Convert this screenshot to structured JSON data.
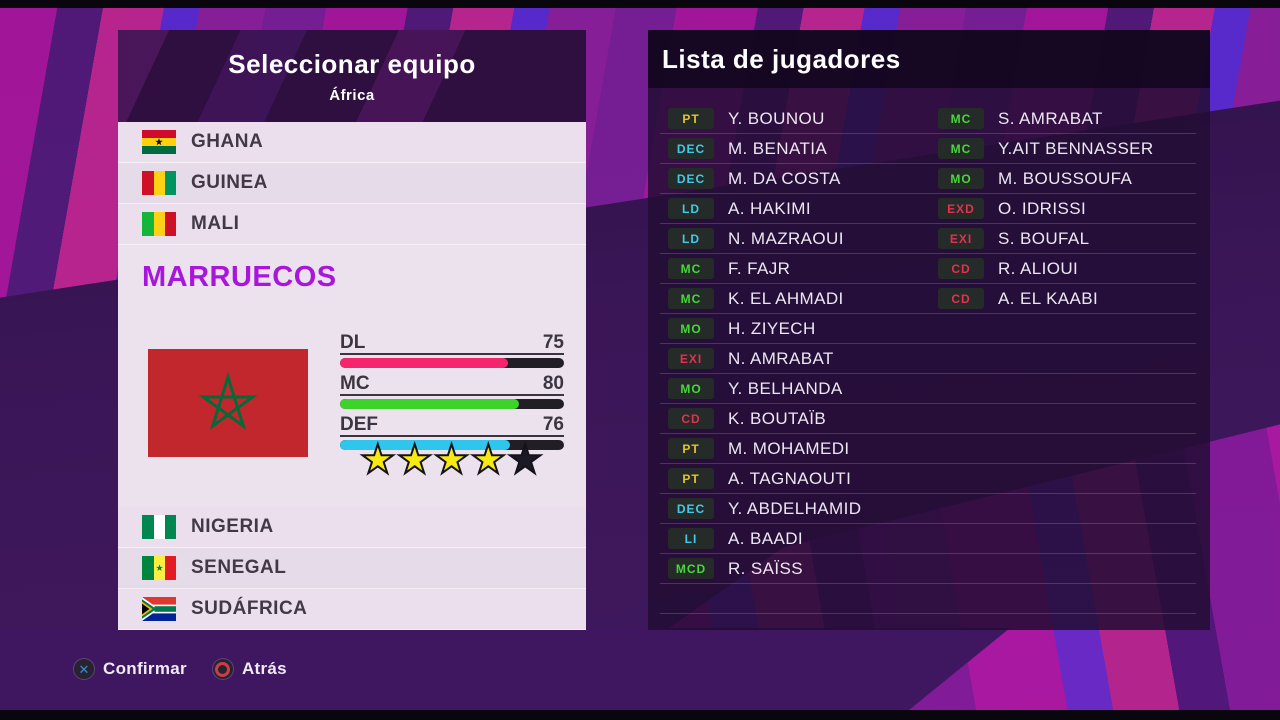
{
  "left_panel": {
    "title": "Seleccionar equipo",
    "subtitle": "África",
    "teams_above": [
      {
        "name": "GHANA",
        "flag": "gh"
      },
      {
        "name": "GUINEA",
        "flag": "gn"
      },
      {
        "name": "MALI",
        "flag": "ml"
      }
    ],
    "selected": {
      "name": "MARRUECOS",
      "flag": "ma",
      "stats": [
        {
          "label": "DL",
          "value": 75,
          "color": "#f5256d"
        },
        {
          "label": "MC",
          "value": 80,
          "color": "#3ed32b"
        },
        {
          "label": "DEF",
          "value": 76,
          "color": "#2ec6ec"
        }
      ],
      "stars_filled": 4,
      "stars_total": 5
    },
    "teams_below": [
      {
        "name": "NIGERIA",
        "flag": "ng"
      },
      {
        "name": "SENEGAL",
        "flag": "sn"
      },
      {
        "name": "SUDÁFRICA",
        "flag": "za"
      }
    ]
  },
  "player_list": {
    "title": "Lista de jugadores",
    "rows_per_column": 17,
    "columns": [
      [
        {
          "pos": "PT",
          "role": "gk",
          "name": "Y. BOUNOU"
        },
        {
          "pos": "DEC",
          "role": "df",
          "name": "M. BENATIA"
        },
        {
          "pos": "DEC",
          "role": "df",
          "name": "M. DA COSTA"
        },
        {
          "pos": "LD",
          "role": "df",
          "name": "A. HAKIMI"
        },
        {
          "pos": "LD",
          "role": "df",
          "name": "N. MAZRAOUI"
        },
        {
          "pos": "MC",
          "role": "mf",
          "name": "F. FAJR"
        },
        {
          "pos": "MC",
          "role": "mf",
          "name": "K. EL AHMADI"
        },
        {
          "pos": "MO",
          "role": "mf",
          "name": "H. ZIYECH"
        },
        {
          "pos": "EXI",
          "role": "fw",
          "name": "N. AMRABAT"
        },
        {
          "pos": "MO",
          "role": "mf",
          "name": "Y. BELHANDA"
        },
        {
          "pos": "CD",
          "role": "fw",
          "name": "K. BOUTAÏB"
        },
        {
          "pos": "PT",
          "role": "gk",
          "name": "M. MOHAMEDI"
        },
        {
          "pos": "PT",
          "role": "gk",
          "name": "A. TAGNAOUTI"
        },
        {
          "pos": "DEC",
          "role": "df",
          "name": "Y. ABDELHAMID"
        },
        {
          "pos": "LI",
          "role": "df",
          "name": "A. BAADI"
        },
        {
          "pos": "MCD",
          "role": "mf",
          "name": "R. SAÏSS"
        }
      ],
      [
        {
          "pos": "MC",
          "role": "mf",
          "name": "S. AMRABAT"
        },
        {
          "pos": "MC",
          "role": "mf",
          "name": "Y.AIT BENNASSER"
        },
        {
          "pos": "MO",
          "role": "mf",
          "name": "M. BOUSSOUFA"
        },
        {
          "pos": "EXD",
          "role": "fw",
          "name": "O. IDRISSI"
        },
        {
          "pos": "EXI",
          "role": "fw",
          "name": "S. BOUFAL"
        },
        {
          "pos": "CD",
          "role": "fw",
          "name": "R. ALIOUI"
        },
        {
          "pos": "CD",
          "role": "fw",
          "name": "A. EL KAABI"
        }
      ]
    ]
  },
  "footer": {
    "confirm_label": "Confirmar",
    "back_label": "Atrás"
  },
  "colors": {
    "selected_team_name": "#a816dc",
    "stat_dl": "#f5256d",
    "stat_mc": "#3ed32b",
    "stat_def": "#2ec6ec",
    "star_filled": "#f6ea12",
    "star_empty": "#1c1926",
    "pos_gk": "#e6c42d",
    "pos_df": "#43c9e8",
    "pos_mf": "#49d63c",
    "pos_fw": "#e53050"
  }
}
